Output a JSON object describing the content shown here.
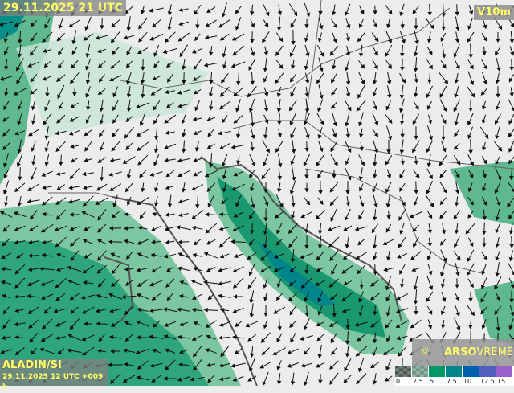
{
  "header": {
    "valid_time": "29.11.2025 21 UTC",
    "variable": "V10m"
  },
  "model": {
    "name": "ALADIN/SI",
    "run": "29.11.2025 12 UTC +009 h"
  },
  "brand": {
    "strong": "ARSO",
    "light": "VREME",
    "icon": "weather-sun-icon"
  },
  "legend": {
    "ticks": [
      "0",
      "2.5",
      "5",
      "7.5",
      "10",
      "12.5",
      "15"
    ],
    "colors": [
      "#4a5a50",
      "#6f9585",
      "#009966",
      "#00868a",
      "#0060b0",
      "#5060c0",
      "#9960cc"
    ]
  },
  "map": {
    "land_color": "#ececec",
    "low_wind_color": "#a8d8c0",
    "mid_wind_color": "#5fb890",
    "high_wind_color": "#1a9970"
  }
}
